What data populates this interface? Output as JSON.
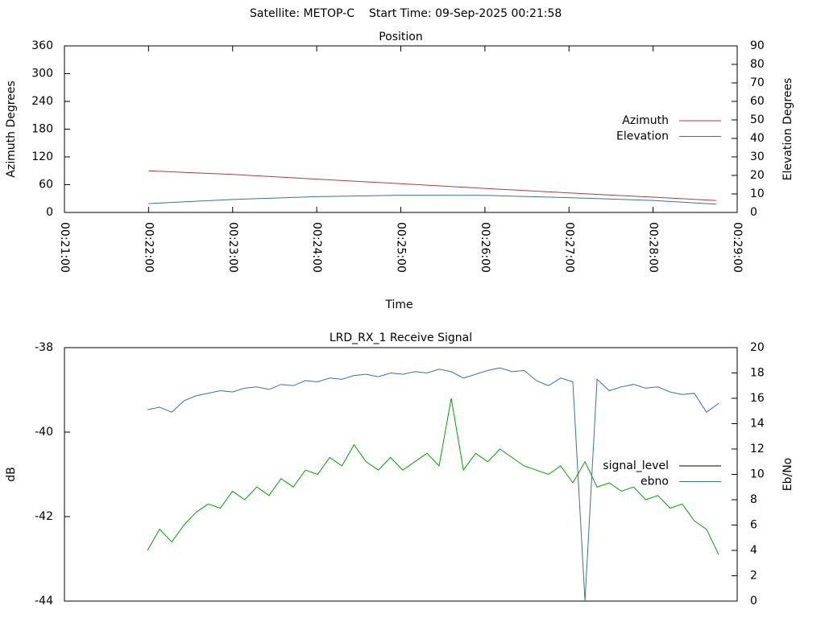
{
  "header": {
    "satellite": "Satellite: METOP-C",
    "start_time": "Start Time: 09-Sep-2025 00:21:58"
  },
  "chart_data": [
    {
      "type": "line",
      "title": "Position",
      "x_label": "Time",
      "y_label": "Azimuth Degrees",
      "y2_label": "Elevation Degrees",
      "x": [
        "00:22:00",
        "00:23:00",
        "00:24:00",
        "00:25:00",
        "00:26:00",
        "00:27:00",
        "00:28:00",
        "00:28:45"
      ],
      "xlim": [
        "00:21:00",
        "00:29:00"
      ],
      "xticks": [
        "00:21:00",
        "00:22:00",
        "00:23:00",
        "00:24:00",
        "00:25:00",
        "00:26:00",
        "00:27:00",
        "00:28:00",
        "00:29:00"
      ],
      "ylim": [
        0,
        360
      ],
      "yticks": [
        0,
        60,
        120,
        180,
        240,
        300,
        360
      ],
      "y2lim": [
        0,
        90
      ],
      "y2ticks": [
        0,
        10,
        20,
        30,
        40,
        50,
        60,
        70,
        80,
        90
      ],
      "series": [
        {
          "name": "Azimuth",
          "color": "#b03c3c",
          "values": [
            90,
            82,
            72,
            62,
            52,
            42,
            33,
            26
          ]
        },
        {
          "name": "Elevation",
          "color": "#3c6fa8",
          "axis": "y2",
          "values": [
            4.8,
            7,
            8.5,
            9.3,
            9.2,
            8,
            6.5,
            4.5
          ]
        }
      ]
    },
    {
      "type": "line",
      "title": "LRD_RX_1 Receive Signal",
      "y_label": "dB",
      "y2_label": "Eb/No",
      "categories": [
        null,
        null,
        null,
        null,
        null,
        null,
        null,
        null,
        null,
        null,
        null,
        null,
        null,
        null,
        null,
        null,
        null,
        null,
        null,
        null,
        null,
        null,
        null,
        null,
        null,
        null,
        null,
        null,
        null,
        null,
        null,
        null,
        null,
        null,
        null,
        null,
        null,
        null,
        null,
        null,
        null,
        null,
        null,
        null,
        null,
        null,
        null,
        null
      ],
      "ylim": [
        -44,
        -38
      ],
      "yticks": [
        -44,
        -42,
        -40,
        -38
      ],
      "y2lim": [
        0,
        20
      ],
      "y2ticks": [
        0,
        2,
        4,
        6,
        8,
        10,
        12,
        14,
        16,
        18,
        20
      ],
      "series": [
        {
          "name": "signal_level",
          "color": "#00a000",
          "legend_color": "#000000",
          "values": [
            -42.8,
            -42.3,
            -42.6,
            -42.2,
            -41.9,
            -41.7,
            -41.8,
            -41.4,
            -41.6,
            -41.3,
            -41.5,
            -41.1,
            -41.3,
            -40.9,
            -41.0,
            -40.6,
            -40.8,
            -40.3,
            -40.7,
            -40.9,
            -40.6,
            -40.9,
            -40.7,
            -40.5,
            -40.8,
            -39.2,
            -40.9,
            -40.5,
            -40.7,
            -40.4,
            -40.6,
            -40.8,
            -40.9,
            -41.0,
            -40.8,
            -41.2,
            -40.7,
            -41.3,
            -41.2,
            -41.4,
            -41.3,
            -41.6,
            -41.5,
            -41.8,
            -41.7,
            -42.1,
            -42.3,
            -42.9
          ]
        },
        {
          "name": "ebno",
          "color": "#3c6fa8",
          "axis": "y2",
          "values": [
            15.1,
            15.3,
            14.9,
            15.8,
            16.2,
            16.4,
            16.6,
            16.5,
            16.8,
            16.9,
            16.7,
            17.1,
            17.0,
            17.4,
            17.3,
            17.6,
            17.5,
            17.8,
            17.9,
            17.7,
            18.0,
            17.9,
            18.1,
            18.0,
            18.3,
            18.1,
            17.6,
            17.9,
            18.2,
            18.4,
            18.1,
            18.2,
            17.4,
            17.0,
            17.6,
            17.3,
            0,
            17.5,
            16.6,
            16.9,
            17.1,
            16.8,
            16.9,
            16.5,
            16.3,
            16.4,
            14.9,
            15.6
          ]
        }
      ]
    }
  ]
}
